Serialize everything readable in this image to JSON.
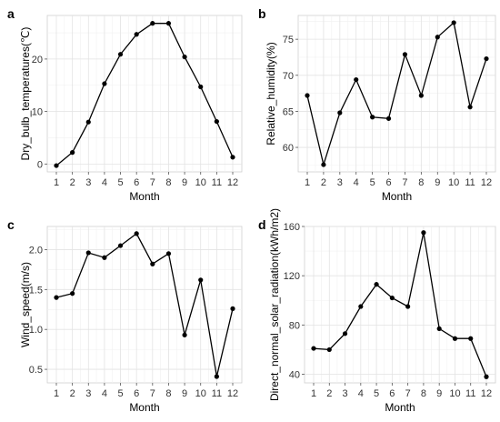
{
  "chart_data": [
    {
      "panel": "a",
      "type": "line",
      "title": "",
      "xlabel": "Month",
      "ylabel": "Dry_bulb_temperatures(℃)",
      "x": [
        1,
        2,
        3,
        4,
        5,
        6,
        7,
        8,
        9,
        10,
        11,
        12
      ],
      "xticks": [
        "1",
        "2",
        "3",
        "4",
        "5",
        "6",
        "7",
        "8",
        "9",
        "10",
        "11",
        "12"
      ],
      "series": [
        {
          "values": [
            -0.3,
            2.2,
            8.0,
            15.3,
            20.9,
            24.7,
            26.8,
            26.8,
            20.4,
            14.7,
            8.1,
            1.3
          ]
        }
      ],
      "yticks": [
        0,
        10,
        20
      ],
      "ylim": [
        -1.5,
        28.3
      ],
      "grid": true
    },
    {
      "panel": "b",
      "type": "line",
      "title": "",
      "xlabel": "Month",
      "ylabel": "Relative_humidity(%)",
      "x": [
        1,
        2,
        3,
        4,
        5,
        6,
        7,
        8,
        9,
        10,
        11,
        12
      ],
      "xticks": [
        "1",
        "2",
        "3",
        "4",
        "5",
        "6",
        "7",
        "8",
        "9",
        "10",
        "11",
        "12"
      ],
      "series": [
        {
          "values": [
            67.2,
            57.6,
            64.8,
            69.4,
            64.2,
            64.0,
            72.9,
            67.2,
            75.3,
            77.3,
            65.6,
            72.3
          ]
        }
      ],
      "yticks": [
        60,
        65,
        70,
        75
      ],
      "ylim": [
        56.6,
        78.3
      ],
      "grid": true
    },
    {
      "panel": "c",
      "type": "line",
      "title": "",
      "xlabel": "Month",
      "ylabel": "Wind_speed(m/s)",
      "x": [
        1,
        2,
        3,
        4,
        5,
        6,
        7,
        8,
        9,
        10,
        11,
        12
      ],
      "xticks": [
        "1",
        "2",
        "3",
        "4",
        "5",
        "6",
        "7",
        "8",
        "9",
        "10",
        "11",
        "12"
      ],
      "series": [
        {
          "values": [
            1.4,
            1.45,
            1.96,
            1.9,
            2.05,
            2.2,
            1.82,
            1.95,
            0.93,
            1.62,
            0.41,
            1.26
          ]
        }
      ],
      "yticks": [
        0.5,
        1.0,
        1.5,
        2.0
      ],
      "yticklabels": [
        "0.5",
        "1.0",
        "1.5",
        "2.0"
      ],
      "ylim": [
        0.33,
        2.29
      ],
      "grid": true
    },
    {
      "panel": "d",
      "type": "line",
      "title": "",
      "xlabel": "Month",
      "ylabel": "Direct_normal_solar_radiation(kWh/m2)",
      "x": [
        1,
        2,
        3,
        4,
        5,
        6,
        7,
        8,
        9,
        10,
        11,
        12
      ],
      "xticks": [
        "1",
        "2",
        "3",
        "4",
        "5",
        "6",
        "7",
        "8",
        "9",
        "10",
        "11",
        "12"
      ],
      "series": [
        {
          "values": [
            61,
            60,
            73,
            95,
            113,
            102,
            95,
            155,
            77,
            69,
            69,
            38
          ]
        }
      ],
      "yticks": [
        40,
        80,
        120,
        160
      ],
      "ylim": [
        33,
        160
      ],
      "grid": true
    }
  ]
}
